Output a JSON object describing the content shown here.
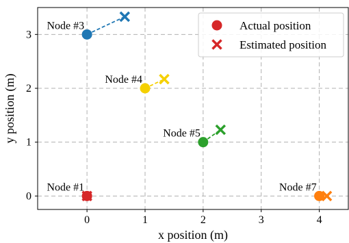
{
  "chart_data": {
    "type": "scatter",
    "xlabel": "x position (m)",
    "ylabel": "y position (m)",
    "xlim": [
      -0.85,
      4.5
    ],
    "ylim": [
      -0.25,
      3.5
    ],
    "xticks": [
      "0",
      "1",
      "2",
      "3",
      "4"
    ],
    "yticks": [
      "0",
      "1",
      "2",
      "3"
    ],
    "grid": true,
    "legend": {
      "position": "top-right",
      "entries": [
        {
          "label": "Actual position",
          "marker": "circle",
          "color": "#d62728"
        },
        {
          "label": "Estimated position",
          "marker": "x",
          "color": "#d62728"
        }
      ]
    },
    "nodes": [
      {
        "label": "Node #1",
        "color": "#d62728",
        "actual": [
          0,
          0
        ],
        "estimated": [
          0.0,
          0.0
        ]
      },
      {
        "label": "Node #3",
        "color": "#1f77b4",
        "actual": [
          0,
          3
        ],
        "estimated": [
          0.65,
          3.33
        ]
      },
      {
        "label": "Node #4",
        "color": "#f5d000",
        "actual": [
          1,
          2
        ],
        "estimated": [
          1.33,
          2.17
        ]
      },
      {
        "label": "Node #5",
        "color": "#2ca02c",
        "actual": [
          2,
          1
        ],
        "estimated": [
          2.3,
          1.23
        ]
      },
      {
        "label": "Node #7",
        "color": "#ff7f0e",
        "actual": [
          4,
          0
        ],
        "estimated": [
          4.13,
          0.0
        ]
      }
    ]
  }
}
